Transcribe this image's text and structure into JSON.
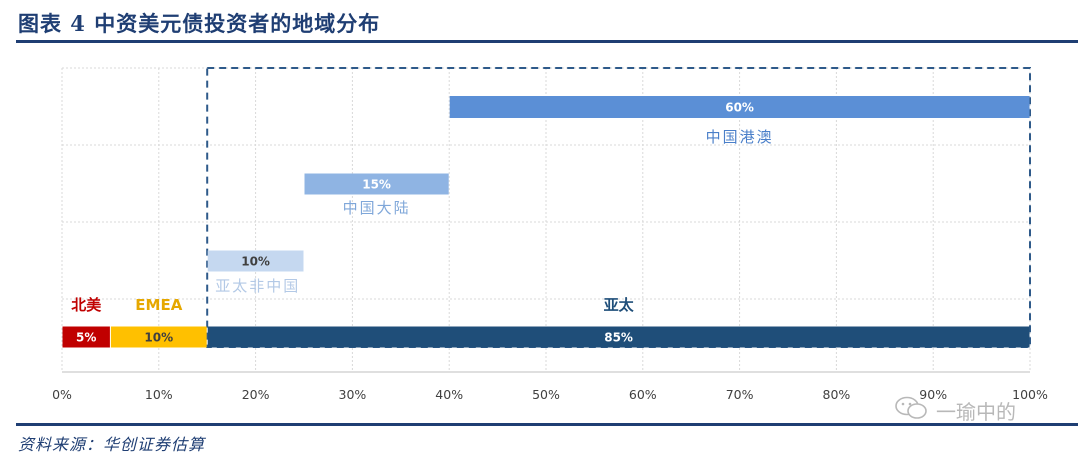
{
  "header": {
    "title": "图表 4   中资美元债投资者的地域分布"
  },
  "footer": {
    "source": "资料来源：华创证券估算"
  },
  "watermark": {
    "text": "一瑜中的",
    "icon": "wechat-icon"
  },
  "colors": {
    "north_america": "#c00000",
    "emea": "#ffc000",
    "asia_pacific": "#1f4e79",
    "hk_macau": "#5b8fd6",
    "mainland": "#8fb4e3",
    "apac_ex_china": "#c5d8f0",
    "grid": "#d9d9d9",
    "dashed_box": "#2e5a8a"
  },
  "chart_data": {
    "type": "bar",
    "orientation": "horizontal-stacked",
    "xlim": [
      0,
      100
    ],
    "xticks": [
      "0%",
      "10%",
      "20%",
      "30%",
      "40%",
      "50%",
      "60%",
      "70%",
      "80%",
      "90%",
      "100%"
    ],
    "grid": true,
    "rows": [
      {
        "segments": [
          {
            "name": "北美",
            "start": 0,
            "value": 5,
            "label": "5%",
            "color_key": "north_america"
          },
          {
            "name": "EMEA",
            "start": 5,
            "value": 10,
            "label": "10%",
            "color_key": "emea"
          },
          {
            "name": "亚太",
            "start": 15,
            "value": 85,
            "label": "85%",
            "color_key": "asia_pacific"
          }
        ]
      },
      {
        "segments": [
          {
            "name": "亚太非中国",
            "start": 15,
            "value": 10,
            "label": "10%",
            "color_key": "apac_ex_china"
          }
        ]
      },
      {
        "segments": [
          {
            "name": "中国大陆",
            "start": 25,
            "value": 15,
            "label": "15%",
            "color_key": "mainland"
          }
        ]
      },
      {
        "segments": [
          {
            "name": "中国港澳",
            "start": 40,
            "value": 60,
            "label": "60%",
            "color_key": "hk_macau"
          }
        ]
      }
    ],
    "annotation_box": {
      "from": 15,
      "to": 100,
      "style": "dashed"
    }
  }
}
